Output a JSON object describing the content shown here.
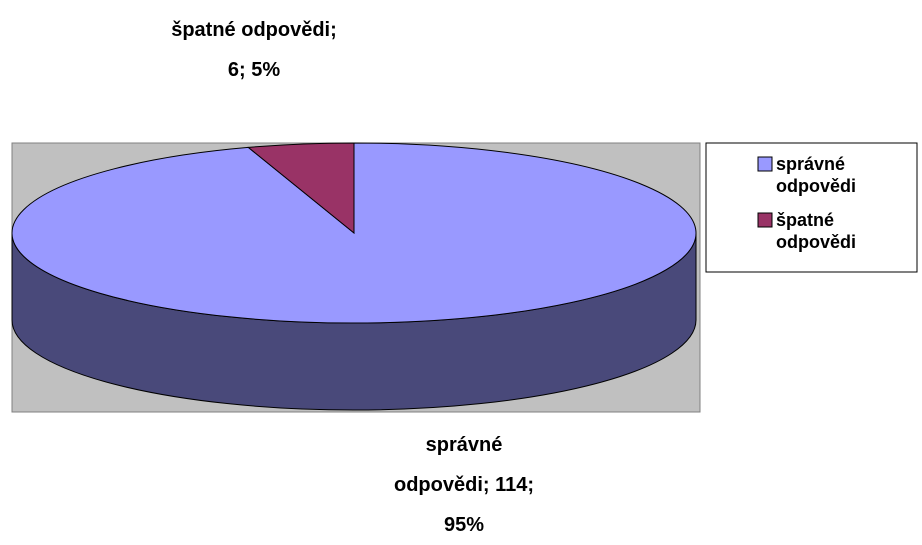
{
  "chart_data": {
    "type": "pie",
    "three_d": true,
    "categories": [
      "správné odpovědi",
      "špatné odpovědi"
    ],
    "values": [
      114,
      6
    ],
    "value_labels": [
      "správné odpovědi; 114; 95%",
      "špatné odpovědi; 6; 5%"
    ],
    "colors": [
      "#9999ff",
      "#993366"
    ],
    "legend": "right"
  }
}
